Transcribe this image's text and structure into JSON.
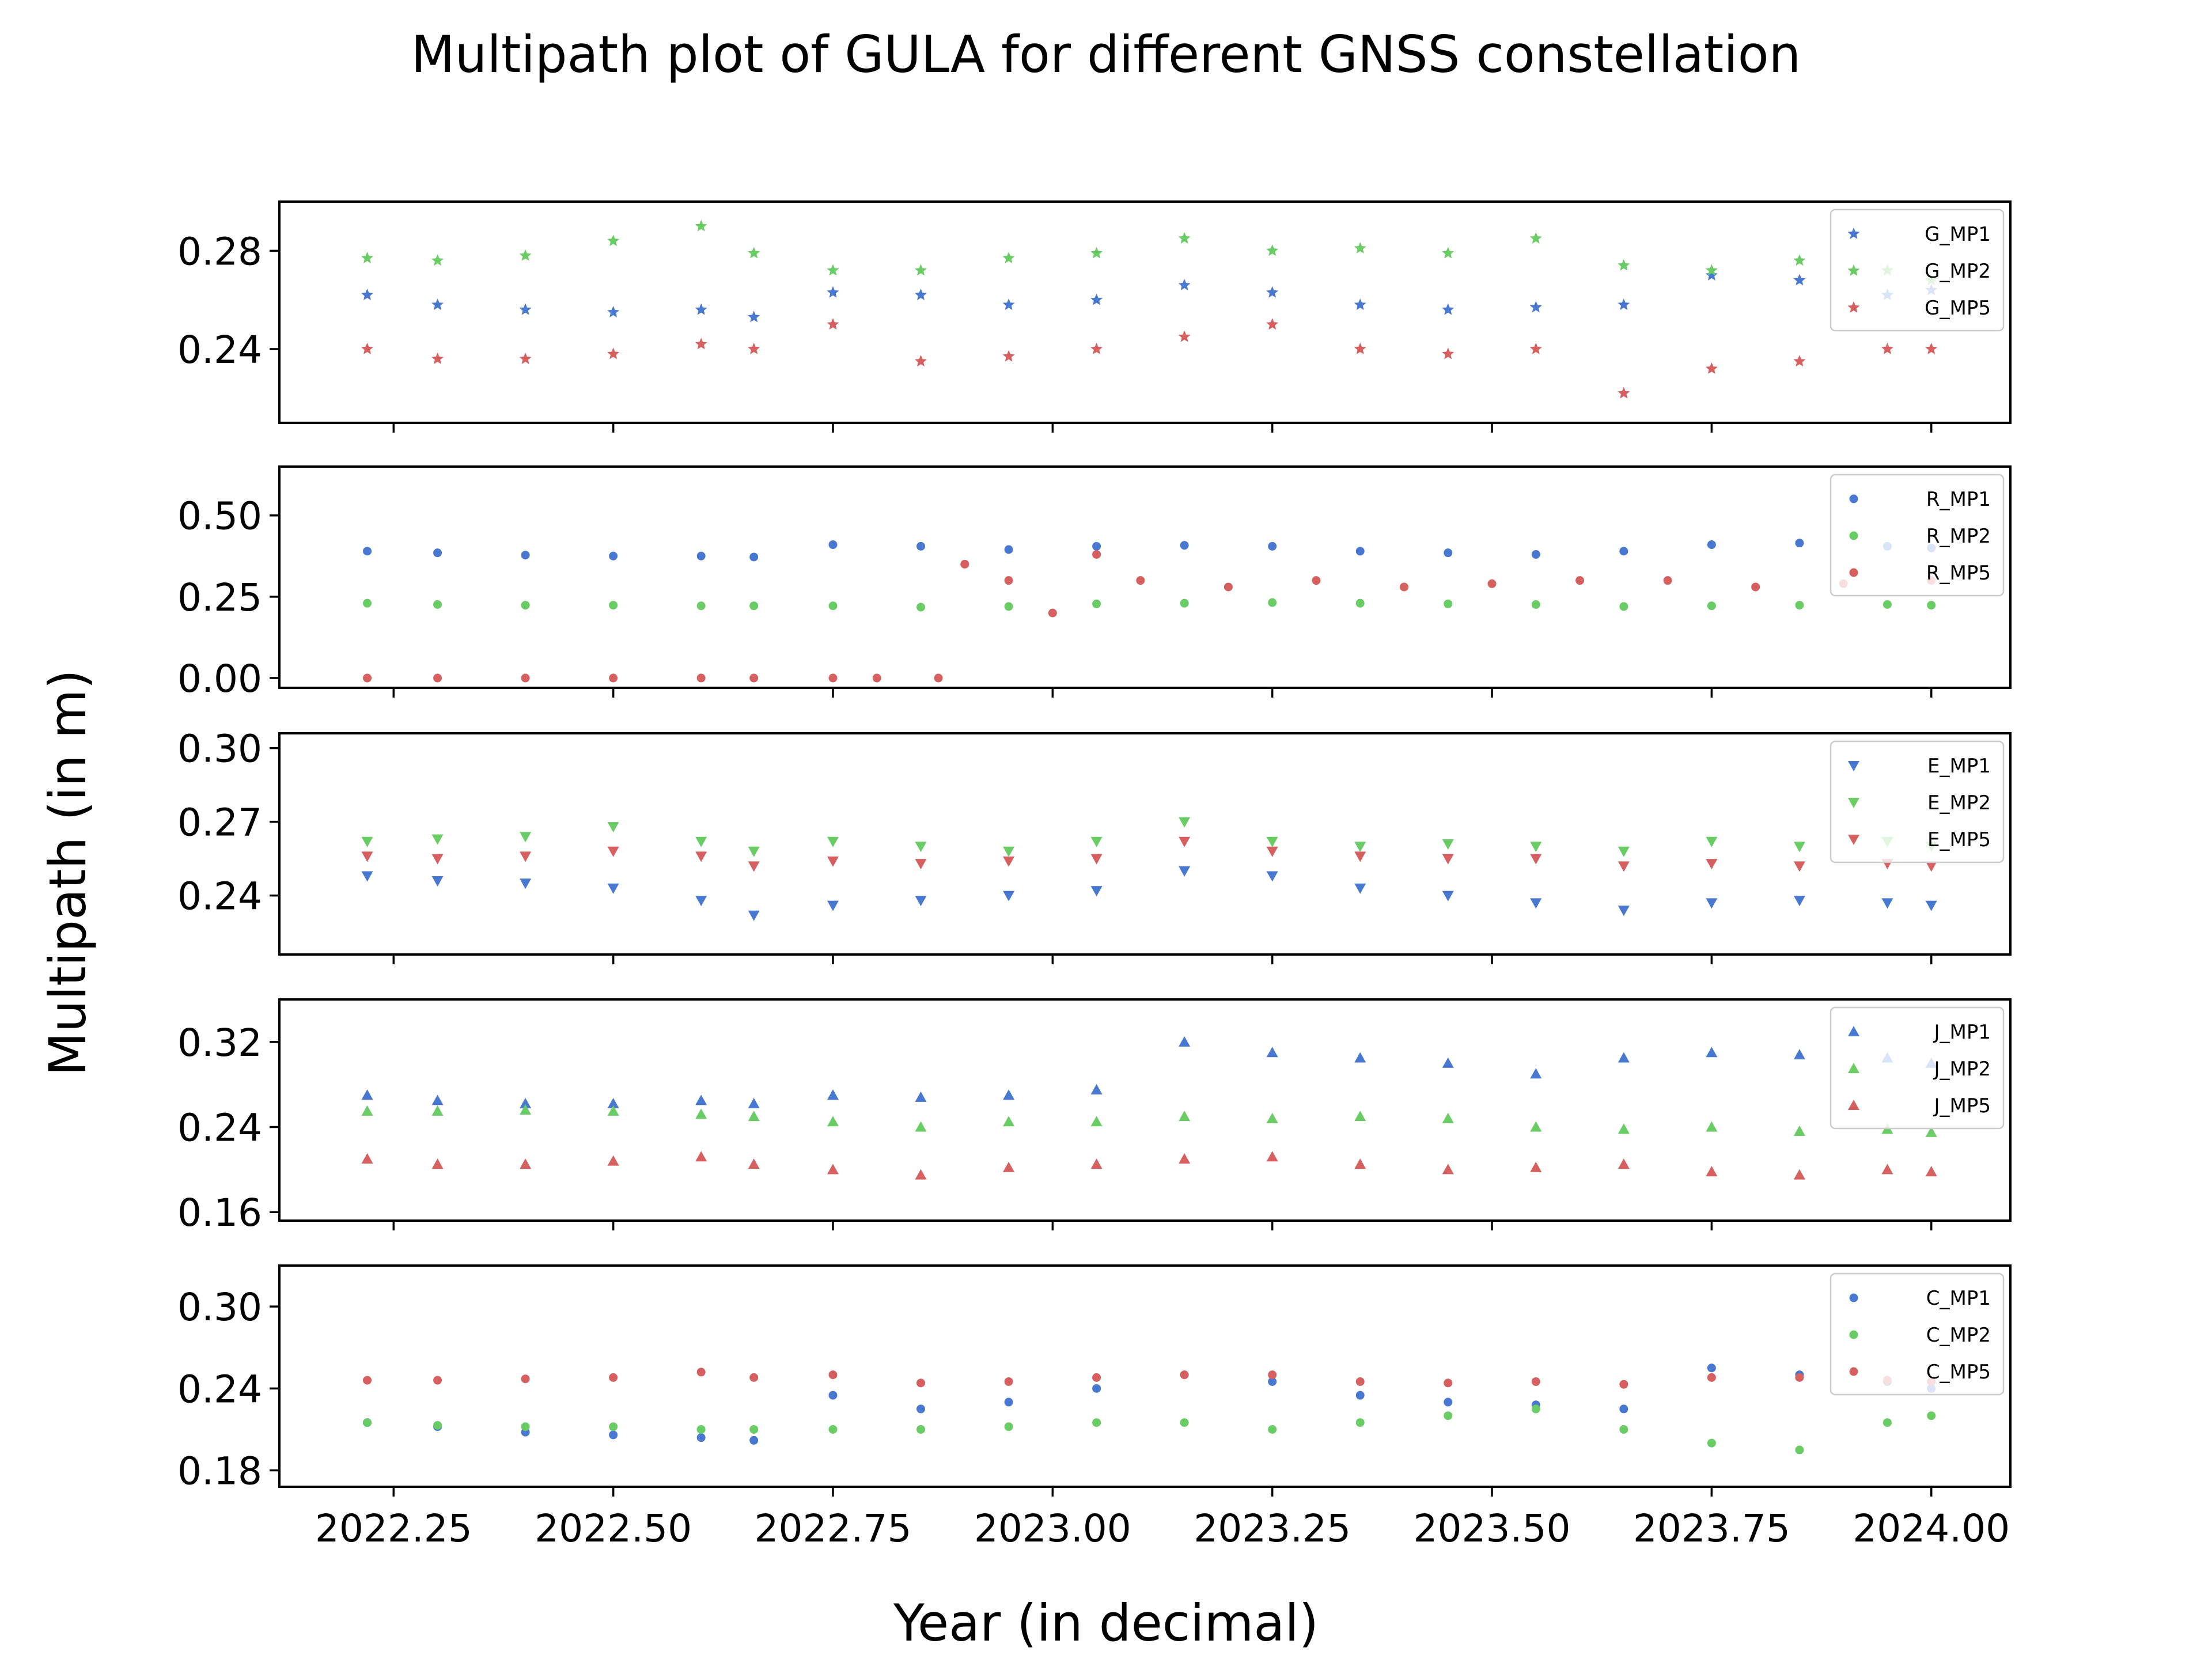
{
  "figure": {
    "title": "Multipath plot of GULA for different GNSS constellation",
    "xlabel": "Year (in decimal)",
    "ylabel": "Multipath (in m)"
  },
  "colors": {
    "MP1": "#4878d0",
    "MP2": "#6acc64",
    "MP5": "#d65f5f"
  },
  "chart_data": [
    {
      "type": "scatter",
      "marker": "star",
      "xlim": [
        2022.12,
        2024.09
      ],
      "ylim": [
        0.21,
        0.3
      ],
      "x_ticks": [
        2022.25,
        2022.5,
        2022.75,
        2023.0,
        2023.25,
        2023.5,
        2023.75,
        2024.0
      ],
      "x_tick_labels": [
        "2022.25",
        "2022.50",
        "2022.75",
        "2023.00",
        "2023.25",
        "2023.50",
        "2023.75",
        "2024.00"
      ],
      "y_ticks": [
        0.24,
        0.28
      ],
      "y_tick_labels": [
        "0.24",
        "0.28"
      ],
      "legend_position": "upper right",
      "data_gap": [
        2022.67,
        2022.75
      ],
      "series": [
        {
          "name": "G_MP1",
          "color": "#4878d0",
          "x": [
            2022.22,
            2022.3,
            2022.4,
            2022.5,
            2022.6,
            2022.66,
            2022.75,
            2022.85,
            2022.95,
            2023.05,
            2023.15,
            2023.25,
            2023.35,
            2023.45,
            2023.55,
            2023.65,
            2023.75,
            2023.85,
            2023.95,
            2024.0
          ],
          "y": [
            0.262,
            0.258,
            0.256,
            0.255,
            0.256,
            0.253,
            0.263,
            0.262,
            0.258,
            0.26,
            0.266,
            0.263,
            0.258,
            0.256,
            0.257,
            0.258,
            0.27,
            0.268,
            0.262,
            0.264
          ]
        },
        {
          "name": "G_MP2",
          "color": "#6acc64",
          "x": [
            2022.22,
            2022.3,
            2022.4,
            2022.5,
            2022.6,
            2022.66,
            2022.75,
            2022.85,
            2022.95,
            2023.05,
            2023.15,
            2023.25,
            2023.35,
            2023.45,
            2023.55,
            2023.65,
            2023.75,
            2023.85,
            2023.95,
            2024.0
          ],
          "y": [
            0.277,
            0.276,
            0.278,
            0.284,
            0.29,
            0.279,
            0.272,
            0.272,
            0.277,
            0.279,
            0.285,
            0.28,
            0.281,
            0.279,
            0.285,
            0.274,
            0.272,
            0.276,
            0.272,
            0.268
          ]
        },
        {
          "name": "G_MP5",
          "color": "#d65f5f",
          "x": [
            2022.22,
            2022.3,
            2022.4,
            2022.5,
            2022.6,
            2022.66,
            2022.75,
            2022.85,
            2022.95,
            2023.05,
            2023.15,
            2023.25,
            2023.35,
            2023.45,
            2023.55,
            2023.65,
            2023.75,
            2023.85,
            2023.95,
            2024.0
          ],
          "y": [
            0.24,
            0.236,
            0.236,
            0.238,
            0.242,
            0.24,
            0.25,
            0.235,
            0.237,
            0.24,
            0.245,
            0.25,
            0.24,
            0.238,
            0.24,
            0.222,
            0.232,
            0.235,
            0.24,
            0.24
          ]
        }
      ]
    },
    {
      "type": "scatter",
      "marker": "circle",
      "xlim": [
        2022.12,
        2024.09
      ],
      "ylim": [
        -0.03,
        0.65
      ],
      "x_ticks": [
        2022.25,
        2022.5,
        2022.75,
        2023.0,
        2023.25,
        2023.5,
        2023.75,
        2024.0
      ],
      "y_ticks": [
        0.0,
        0.25,
        0.5
      ],
      "y_tick_labels": [
        "0.00",
        "0.25",
        "0.50"
      ],
      "legend_position": "upper right",
      "data_gap": [
        2022.67,
        2022.75
      ],
      "series": [
        {
          "name": "R_MP1",
          "color": "#4878d0",
          "x": [
            2022.22,
            2022.3,
            2022.4,
            2022.5,
            2022.6,
            2022.66,
            2022.75,
            2022.85,
            2022.95,
            2023.05,
            2023.15,
            2023.25,
            2023.35,
            2023.45,
            2023.55,
            2023.65,
            2023.75,
            2023.85,
            2023.95,
            2024.0
          ],
          "y": [
            0.39,
            0.385,
            0.378,
            0.375,
            0.375,
            0.372,
            0.41,
            0.405,
            0.395,
            0.405,
            0.408,
            0.405,
            0.39,
            0.385,
            0.38,
            0.39,
            0.41,
            0.415,
            0.405,
            0.4
          ]
        },
        {
          "name": "R_MP2",
          "color": "#6acc64",
          "x": [
            2022.22,
            2022.3,
            2022.4,
            2022.5,
            2022.6,
            2022.66,
            2022.75,
            2022.85,
            2022.95,
            2023.05,
            2023.15,
            2023.25,
            2023.35,
            2023.45,
            2023.55,
            2023.65,
            2023.75,
            2023.85,
            2023.95,
            2024.0
          ],
          "y": [
            0.23,
            0.226,
            0.224,
            0.224,
            0.222,
            0.222,
            0.222,
            0.218,
            0.22,
            0.228,
            0.23,
            0.232,
            0.23,
            0.228,
            0.226,
            0.22,
            0.222,
            0.224,
            0.226,
            0.224
          ]
        },
        {
          "name": "R_MP5",
          "color": "#d65f5f",
          "x": [
            2022.22,
            2022.3,
            2022.4,
            2022.5,
            2022.6,
            2022.66,
            2022.75,
            2022.8,
            2022.87,
            2022.9,
            2022.95,
            2023.0,
            2023.05,
            2023.1,
            2023.2,
            2023.3,
            2023.4,
            2023.5,
            2023.6,
            2023.7,
            2023.8,
            2023.9,
            2024.0
          ],
          "y": [
            0.0,
            0.0,
            0.0,
            0.0,
            0.0,
            0.0,
            0.0,
            0.0,
            0.0,
            0.35,
            0.3,
            0.2,
            0.38,
            0.3,
            0.28,
            0.3,
            0.28,
            0.29,
            0.3,
            0.3,
            0.28,
            0.29,
            0.3
          ]
        }
      ]
    },
    {
      "type": "scatter",
      "marker": "triangle-down",
      "xlim": [
        2022.12,
        2024.09
      ],
      "ylim": [
        0.216,
        0.306
      ],
      "x_ticks": [
        2022.25,
        2022.5,
        2022.75,
        2023.0,
        2023.25,
        2023.5,
        2023.75,
        2024.0
      ],
      "y_ticks": [
        0.24,
        0.27,
        0.3
      ],
      "y_tick_labels": [
        "0.24",
        "0.27",
        "0.30"
      ],
      "legend_position": "upper right",
      "data_gap": [
        2022.67,
        2022.75
      ],
      "series": [
        {
          "name": "E_MP1",
          "color": "#4878d0",
          "x": [
            2022.22,
            2022.3,
            2022.4,
            2022.5,
            2022.6,
            2022.66,
            2022.75,
            2022.85,
            2022.95,
            2023.05,
            2023.15,
            2023.25,
            2023.35,
            2023.45,
            2023.55,
            2023.65,
            2023.75,
            2023.85,
            2023.95,
            2024.0
          ],
          "y": [
            0.248,
            0.246,
            0.245,
            0.243,
            0.238,
            0.232,
            0.236,
            0.238,
            0.24,
            0.242,
            0.25,
            0.248,
            0.243,
            0.24,
            0.237,
            0.234,
            0.237,
            0.238,
            0.237,
            0.236
          ]
        },
        {
          "name": "E_MP2",
          "color": "#6acc64",
          "x": [
            2022.22,
            2022.3,
            2022.4,
            2022.5,
            2022.6,
            2022.66,
            2022.75,
            2022.85,
            2022.95,
            2023.05,
            2023.15,
            2023.25,
            2023.35,
            2023.45,
            2023.55,
            2023.65,
            2023.75,
            2023.85,
            2023.95,
            2024.0
          ],
          "y": [
            0.262,
            0.263,
            0.264,
            0.268,
            0.262,
            0.258,
            0.262,
            0.26,
            0.258,
            0.262,
            0.27,
            0.262,
            0.26,
            0.261,
            0.26,
            0.258,
            0.262,
            0.26,
            0.262,
            0.26
          ]
        },
        {
          "name": "E_MP5",
          "color": "#d65f5f",
          "x": [
            2022.22,
            2022.3,
            2022.4,
            2022.5,
            2022.6,
            2022.66,
            2022.75,
            2022.85,
            2022.95,
            2023.05,
            2023.15,
            2023.25,
            2023.35,
            2023.45,
            2023.55,
            2023.65,
            2023.75,
            2023.85,
            2023.95,
            2024.0
          ],
          "y": [
            0.256,
            0.255,
            0.256,
            0.258,
            0.256,
            0.252,
            0.254,
            0.253,
            0.254,
            0.255,
            0.262,
            0.258,
            0.256,
            0.255,
            0.255,
            0.252,
            0.253,
            0.252,
            0.253,
            0.252
          ]
        }
      ]
    },
    {
      "type": "scatter",
      "marker": "triangle-up",
      "xlim": [
        2022.12,
        2024.09
      ],
      "ylim": [
        0.152,
        0.36
      ],
      "x_ticks": [
        2022.25,
        2022.5,
        2022.75,
        2023.0,
        2023.25,
        2023.5,
        2023.75,
        2024.0
      ],
      "y_ticks": [
        0.16,
        0.24,
        0.32
      ],
      "y_tick_labels": [
        "0.16",
        "0.24",
        "0.32"
      ],
      "legend_position": "upper right",
      "data_gap": [
        2022.67,
        2022.75
      ],
      "series": [
        {
          "name": "J_MP1",
          "color": "#4878d0",
          "x": [
            2022.22,
            2022.3,
            2022.4,
            2022.5,
            2022.6,
            2022.66,
            2022.75,
            2022.85,
            2022.95,
            2023.05,
            2023.15,
            2023.25,
            2023.35,
            2023.45,
            2023.55,
            2023.65,
            2023.75,
            2023.85,
            2023.95,
            2024.0
          ],
          "y": [
            0.27,
            0.265,
            0.262,
            0.262,
            0.265,
            0.262,
            0.27,
            0.268,
            0.27,
            0.275,
            0.32,
            0.31,
            0.305,
            0.3,
            0.29,
            0.305,
            0.31,
            0.308,
            0.305,
            0.3
          ]
        },
        {
          "name": "J_MP2",
          "color": "#6acc64",
          "x": [
            2022.22,
            2022.3,
            2022.4,
            2022.5,
            2022.6,
            2022.66,
            2022.75,
            2022.85,
            2022.95,
            2023.05,
            2023.15,
            2023.25,
            2023.35,
            2023.45,
            2023.55,
            2023.65,
            2023.75,
            2023.85,
            2023.95,
            2024.0
          ],
          "y": [
            0.255,
            0.255,
            0.256,
            0.255,
            0.252,
            0.25,
            0.245,
            0.24,
            0.245,
            0.245,
            0.25,
            0.248,
            0.25,
            0.248,
            0.24,
            0.238,
            0.24,
            0.236,
            0.238,
            0.235
          ]
        },
        {
          "name": "J_MP5",
          "color": "#d65f5f",
          "x": [
            2022.22,
            2022.3,
            2022.4,
            2022.5,
            2022.6,
            2022.66,
            2022.75,
            2022.85,
            2022.95,
            2023.05,
            2023.15,
            2023.25,
            2023.35,
            2023.45,
            2023.55,
            2023.65,
            2023.75,
            2023.85,
            2023.95,
            2024.0
          ],
          "y": [
            0.21,
            0.205,
            0.205,
            0.208,
            0.212,
            0.205,
            0.2,
            0.195,
            0.202,
            0.205,
            0.21,
            0.212,
            0.205,
            0.2,
            0.202,
            0.205,
            0.198,
            0.195,
            0.2,
            0.198
          ]
        }
      ]
    },
    {
      "type": "scatter",
      "marker": "circle",
      "xlim": [
        2022.12,
        2024.09
      ],
      "ylim": [
        0.168,
        0.33
      ],
      "x_ticks": [
        2022.25,
        2022.5,
        2022.75,
        2023.0,
        2023.25,
        2023.5,
        2023.75,
        2024.0
      ],
      "x_tick_labels": [
        "2022.25",
        "2022.50",
        "2022.75",
        "2023.00",
        "2023.25",
        "2023.50",
        "2023.75",
        "2024.00"
      ],
      "y_ticks": [
        0.18,
        0.24,
        0.3
      ],
      "y_tick_labels": [
        "0.18",
        "0.24",
        "0.30"
      ],
      "legend_position": "upper right",
      "data_gap": [
        2022.67,
        2022.75
      ],
      "series": [
        {
          "name": "C_MP1",
          "color": "#4878d0",
          "x": [
            2022.22,
            2022.3,
            2022.4,
            2022.5,
            2022.6,
            2022.66,
            2022.75,
            2022.85,
            2022.95,
            2023.05,
            2023.15,
            2023.25,
            2023.35,
            2023.45,
            2023.55,
            2023.65,
            2023.75,
            2023.85,
            2023.95,
            2024.0
          ],
          "y": [
            0.215,
            0.212,
            0.208,
            0.206,
            0.204,
            0.202,
            0.235,
            0.225,
            0.23,
            0.24,
            0.25,
            0.245,
            0.235,
            0.23,
            0.228,
            0.225,
            0.255,
            0.25,
            0.245,
            0.24
          ]
        },
        {
          "name": "C_MP2",
          "color": "#6acc64",
          "x": [
            2022.22,
            2022.3,
            2022.4,
            2022.5,
            2022.6,
            2022.66,
            2022.75,
            2022.85,
            2022.95,
            2023.05,
            2023.15,
            2023.25,
            2023.35,
            2023.45,
            2023.55,
            2023.65,
            2023.75,
            2023.85,
            2023.95,
            2024.0
          ],
          "y": [
            0.215,
            0.213,
            0.212,
            0.212,
            0.21,
            0.21,
            0.21,
            0.21,
            0.212,
            0.215,
            0.215,
            0.21,
            0.215,
            0.22,
            0.225,
            0.21,
            0.2,
            0.195,
            0.215,
            0.22
          ]
        },
        {
          "name": "C_MP5",
          "color": "#d65f5f",
          "x": [
            2022.22,
            2022.3,
            2022.4,
            2022.5,
            2022.6,
            2022.66,
            2022.75,
            2022.85,
            2022.95,
            2023.05,
            2023.15,
            2023.25,
            2023.35,
            2023.45,
            2023.55,
            2023.65,
            2023.75,
            2023.85,
            2023.95,
            2024.0
          ],
          "y": [
            0.246,
            0.246,
            0.247,
            0.248,
            0.252,
            0.248,
            0.25,
            0.244,
            0.245,
            0.248,
            0.25,
            0.25,
            0.245,
            0.244,
            0.245,
            0.243,
            0.248,
            0.248,
            0.246,
            0.245
          ]
        }
      ]
    }
  ]
}
